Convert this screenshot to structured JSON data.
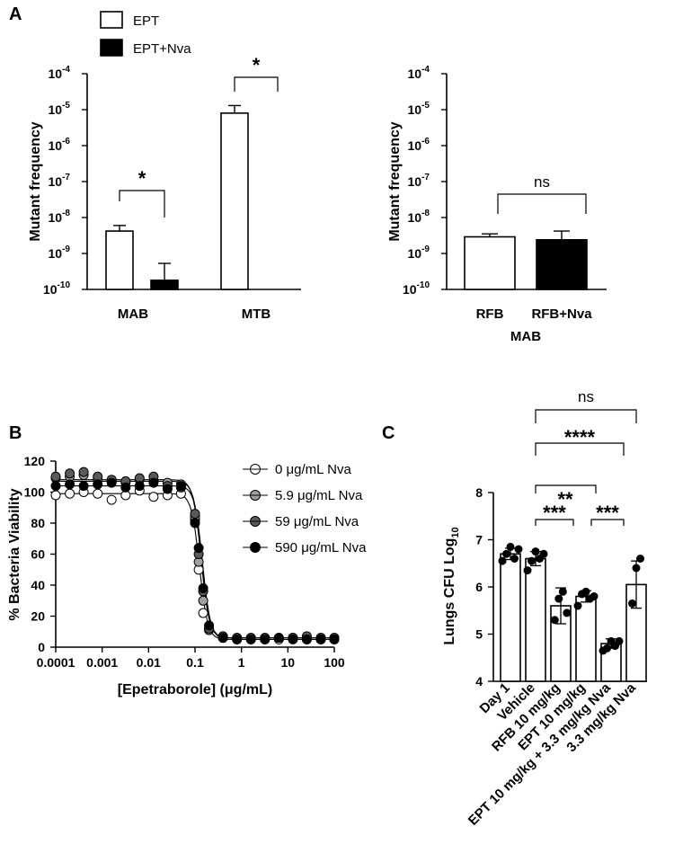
{
  "panel_labels": [
    "A",
    "B",
    "C"
  ],
  "chart_data": [
    {
      "panel": "A",
      "type": "bar",
      "ylabel": "Mutant frequency",
      "yscale": "log",
      "ylim": [
        1e-10,
        0.0001
      ],
      "yticklabels": [
        {
          "base": "10",
          "exp": "-4"
        },
        {
          "base": "10",
          "exp": "-5"
        },
        {
          "base": "10",
          "exp": "-6"
        },
        {
          "base": "10",
          "exp": "-7"
        },
        {
          "base": "10",
          "exp": "-8"
        },
        {
          "base": "10",
          "exp": "-9"
        },
        {
          "base": "10",
          "exp": "-10"
        }
      ],
      "categories": [
        "MAB",
        "MTB"
      ],
      "legend": [
        {
          "label": "EPT",
          "fill": "#ffffff"
        },
        {
          "label": "EPT+Nva",
          "fill": "#000000"
        }
      ],
      "series": [
        {
          "name": "EPT",
          "fill": "#ffffff",
          "values": [
            4.2e-09,
            8e-06
          ],
          "err_upper": [
            6e-09,
            1.3e-05
          ]
        },
        {
          "name": "EPT+Nva",
          "fill": "#000000",
          "values": [
            1.8e-10,
            null
          ],
          "err_upper": [
            5.3e-10,
            null
          ]
        }
      ],
      "comparisons": [
        {
          "category": "MAB",
          "label": "*"
        },
        {
          "category": "MTB",
          "label": "*"
        }
      ]
    },
    {
      "panel": "A-right",
      "type": "bar",
      "ylabel": "Mutant frequency",
      "xlabel": "MAB",
      "yscale": "log",
      "ylim": [
        1e-10,
        0.0001
      ],
      "yticklabels": [
        {
          "base": "10",
          "exp": "-4"
        },
        {
          "base": "10",
          "exp": "-5"
        },
        {
          "base": "10",
          "exp": "-6"
        },
        {
          "base": "10",
          "exp": "-7"
        },
        {
          "base": "10",
          "exp": "-8"
        },
        {
          "base": "10",
          "exp": "-9"
        },
        {
          "base": "10",
          "exp": "-10"
        }
      ],
      "categories": [
        "RFB",
        "RFB+Nva"
      ],
      "values": [
        2.9e-09,
        2.4e-09
      ],
      "err_upper": [
        3.5e-09,
        4.2e-09
      ],
      "fills": [
        "#ffffff",
        "#000000"
      ],
      "comparisons": [
        {
          "label": "ns"
        }
      ]
    },
    {
      "panel": "B",
      "type": "line",
      "ylabel": "% Bacteria Viability",
      "xlabel": "[Epetraborole] (μg/mL)",
      "xscale": "log",
      "xlim": [
        0.0001,
        100
      ],
      "ylim": [
        0,
        120
      ],
      "xticklabels": [
        "0.0001",
        "0.001",
        "0.01",
        "0.1",
        "1",
        "10",
        "100"
      ],
      "yticklabels": [
        "0",
        "20",
        "40",
        "60",
        "80",
        "100",
        "120"
      ],
      "x": [
        0.0001,
        0.0002,
        0.0004,
        0.0008,
        0.0016,
        0.0032,
        0.0064,
        0.0128,
        0.0256,
        0.05,
        0.1,
        0.12,
        0.15,
        0.2,
        0.4,
        0.8,
        1.6,
        3.2,
        6.4,
        12.8,
        25.6,
        51.2,
        100
      ],
      "series": [
        {
          "name": "0 μg/mL Nva",
          "fill": "#ffffff",
          "top": 99,
          "bottom": 5,
          "ec50": 0.125,
          "hill": 5,
          "values": [
            98,
            99,
            100,
            99,
            95,
            98,
            101,
            97,
            98,
            99,
            82,
            50,
            22,
            12,
            6,
            5,
            5,
            5,
            5,
            6,
            5,
            5,
            5
          ]
        },
        {
          "name": "5.9 μg/mL Nva",
          "fill": "#a0a0a0",
          "top": 108,
          "bottom": 6,
          "ec50": 0.135,
          "hill": 5,
          "values": [
            109,
            110,
            111,
            108,
            107,
            106,
            108,
            107,
            106,
            105,
            84,
            55,
            30,
            11,
            6,
            6,
            6,
            6,
            6,
            6,
            6,
            6,
            6
          ]
        },
        {
          "name": "59 μg/mL Nva",
          "fill": "#5a5a5a",
          "top": 107,
          "bottom": 6,
          "ec50": 0.14,
          "hill": 5,
          "values": [
            110,
            112,
            113,
            110,
            108,
            107,
            109,
            110,
            104,
            103,
            86,
            60,
            36,
            12,
            7,
            6,
            6,
            6,
            6,
            6,
            7,
            6,
            6
          ]
        },
        {
          "name": "590 μg/mL Nva",
          "fill": "#000000",
          "top": 104,
          "bottom": 5,
          "ec50": 0.145,
          "hill": 5,
          "values": [
            104,
            105,
            104,
            105,
            106,
            103,
            104,
            106,
            102,
            104,
            80,
            64,
            38,
            14,
            6,
            5,
            5,
            5,
            6,
            5,
            5,
            5,
            5
          ]
        }
      ]
    },
    {
      "panel": "C",
      "type": "bar",
      "ylabel": "Lungs CFU Log",
      "ylabel_sub": "10",
      "ylim": [
        4,
        8
      ],
      "yticklabels": [
        "4",
        "5",
        "6",
        "7",
        "8"
      ],
      "categories": [
        "Day 1",
        "Vehicle",
        "RFB 10 mg/kg",
        "EPT 10 mg/kg",
        "EPT 10 mg/kg + 3.3 mg/kg Nva",
        "3.3 mg/kg Nva"
      ],
      "values": [
        6.7,
        6.6,
        5.6,
        5.8,
        4.8,
        6.05
      ],
      "err": [
        0.12,
        0.15,
        0.38,
        0.12,
        0.1,
        0.5
      ],
      "points": [
        [
          6.55,
          6.7,
          6.85,
          6.6,
          6.8
        ],
        [
          6.35,
          6.55,
          6.75,
          6.6,
          6.7
        ],
        [
          5.3,
          5.75,
          5.9,
          5.45
        ],
        [
          5.6,
          5.85,
          5.9,
          5.75,
          5.8
        ],
        [
          4.65,
          4.7,
          4.85,
          4.75,
          4.85
        ],
        [
          5.65,
          6.4,
          6.6
        ]
      ],
      "comparisons": [
        {
          "from": "Vehicle",
          "to": "3.3 mg/kg Nva",
          "label": "ns"
        },
        {
          "from": "Vehicle",
          "to": "EPT 10 mg/kg + 3.3 mg/kg Nva",
          "label": "****"
        },
        {
          "from": "Vehicle",
          "to": "EPT 10 mg/kg",
          "label": "**"
        },
        {
          "from": "Vehicle",
          "to": "RFB 10 mg/kg",
          "label": "***"
        },
        {
          "from": "EPT 10 mg/kg",
          "to": "EPT 10 mg/kg + 3.3 mg/kg Nva",
          "label": "***"
        }
      ]
    }
  ]
}
